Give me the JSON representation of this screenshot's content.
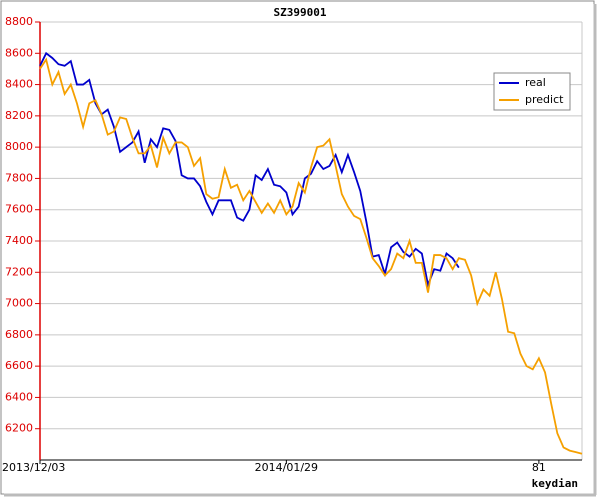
{
  "chart_data": {
    "type": "line",
    "title": "SZ399001",
    "annotation": "keydian",
    "x": [
      0,
      1,
      2,
      3,
      4,
      5,
      6,
      7,
      8,
      9,
      10,
      11,
      12,
      13,
      14,
      15,
      16,
      17,
      18,
      19,
      20,
      21,
      22,
      23,
      24,
      25,
      26,
      27,
      28,
      29,
      30,
      31,
      32,
      33,
      34,
      35,
      36,
      37,
      38,
      39,
      40,
      41,
      42,
      43,
      44,
      45,
      46,
      47,
      48,
      49,
      50,
      51,
      52,
      53,
      54,
      55,
      56,
      57,
      58,
      59,
      60,
      61,
      62,
      63,
      64,
      65,
      66,
      67,
      68,
      69,
      70,
      71,
      72,
      73,
      74,
      75,
      76,
      77,
      78,
      79,
      80,
      81,
      82,
      83,
      84,
      85,
      86,
      87,
      88
    ],
    "xlim": [
      0,
      88
    ],
    "xticks": [
      {
        "value": 0,
        "label": "2013/12/03"
      },
      {
        "value": 40,
        "label": "2014/01/29"
      },
      81
    ],
    "ylim": [
      6000,
      8800
    ],
    "yticks": [
      6200,
      6400,
      6600,
      6800,
      7000,
      7200,
      7400,
      7600,
      7800,
      8000,
      8200,
      8400,
      8600,
      8800
    ],
    "grid": true,
    "legend": "upper right",
    "series": [
      {
        "name": "real",
        "color": "#0000cc",
        "values": [
          8520,
          8600,
          8570,
          8530,
          8520,
          8550,
          8400,
          8400,
          8430,
          8280,
          8210,
          8240,
          8130,
          7970,
          8000,
          8030,
          8100,
          7900,
          8050,
          8000,
          8120,
          8110,
          8040,
          7820,
          7800,
          7800,
          7750,
          7650,
          7570,
          7660,
          7660,
          7660,
          7550,
          7530,
          7600,
          7820,
          7790,
          7860,
          7760,
          7750,
          7710,
          7570,
          7620,
          7800,
          7830,
          7910,
          7860,
          7880,
          7950,
          7840,
          7950,
          7840,
          7720,
          7520,
          7300,
          7310,
          7190,
          7360,
          7390,
          7330,
          7300,
          7350,
          7320,
          7120,
          7220,
          7210,
          7320,
          7290,
          7230,
          null,
          null,
          null,
          null,
          null,
          null,
          null,
          null,
          null,
          null,
          null,
          null,
          null,
          null,
          null,
          null,
          null,
          null,
          null,
          null
        ]
      },
      {
        "name": "predict",
        "color": "#f5a000",
        "values": [
          8500,
          8560,
          8400,
          8480,
          8340,
          8400,
          8280,
          8130,
          8280,
          8300,
          8210,
          8080,
          8100,
          8190,
          8180,
          8060,
          7960,
          7960,
          8010,
          7870,
          8060,
          7960,
          8030,
          8030,
          8000,
          7880,
          7930,
          7700,
          7670,
          7680,
          7860,
          7740,
          7760,
          7660,
          7720,
          7650,
          7580,
          7640,
          7580,
          7660,
          7570,
          7620,
          7770,
          7710,
          7870,
          8000,
          8010,
          8050,
          7880,
          7700,
          7620,
          7560,
          7540,
          7420,
          7290,
          7240,
          7180,
          7220,
          7320,
          7290,
          7400,
          7260,
          7260,
          7070,
          7310,
          7310,
          7290,
          7220,
          7290,
          7280,
          7180,
          7000,
          7090,
          7050,
          7200,
          7030,
          6820,
          6810,
          6680,
          6600,
          6580,
          6650,
          6560,
          6360,
          6170,
          6080,
          6060,
          6050,
          6040
        ]
      }
    ]
  }
}
